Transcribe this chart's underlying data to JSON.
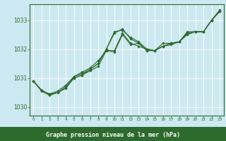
{
  "bg_color": "#cce8f0",
  "plot_bg_color": "#cce8f0",
  "bottom_bar_color": "#2d6a2d",
  "grid_color": "#ffffff",
  "line_color": "#2d6a2d",
  "marker_color": "#2d6a2d",
  "xlabel": "Graphe pression niveau de la mer (hPa)",
  "xlabel_color": "#ffffff",
  "tick_color": "#2d6a2d",
  "xlim": [
    -0.5,
    23.5
  ],
  "ylim": [
    1029.7,
    1033.55
  ],
  "yticks": [
    1030,
    1031,
    1032,
    1033
  ],
  "xticks": [
    0,
    1,
    2,
    3,
    4,
    5,
    6,
    7,
    8,
    9,
    10,
    11,
    12,
    13,
    14,
    15,
    16,
    17,
    18,
    19,
    20,
    21,
    22,
    23
  ],
  "series": [
    [
      1030.9,
      1030.58,
      1030.43,
      1030.5,
      1030.65,
      1031.0,
      1031.1,
      1031.25,
      1031.4,
      1031.95,
      1031.9,
      1032.5,
      1032.15,
      1032.2,
      1031.95,
      1031.95,
      1032.2,
      1032.2,
      1032.25,
      1032.6,
      1032.6,
      1032.6,
      1033.0,
      1033.3
    ],
    [
      1030.9,
      1030.58,
      1030.43,
      1030.5,
      1030.65,
      1031.0,
      1031.1,
      1031.3,
      1031.5,
      1032.0,
      1032.6,
      1032.65,
      1032.4,
      1032.25,
      1032.0,
      1031.95,
      1032.1,
      1032.15,
      1032.25,
      1032.5,
      1032.6,
      1032.6,
      1033.0,
      1033.3
    ],
    [
      1030.9,
      1030.55,
      1030.4,
      1030.5,
      1030.7,
      1031.05,
      1031.15,
      1031.3,
      1031.5,
      1032.0,
      1032.55,
      1032.7,
      1032.35,
      1032.2,
      1031.95,
      1031.95,
      1032.1,
      1032.2,
      1032.25,
      1032.55,
      1032.6,
      1032.6,
      1033.0,
      1033.3
    ],
    [
      1030.9,
      1030.55,
      1030.45,
      1030.55,
      1030.75,
      1031.05,
      1031.2,
      1031.35,
      1031.6,
      1031.95,
      1031.95,
      1032.55,
      1032.2,
      1032.1,
      1032.0,
      1031.95,
      1032.1,
      1032.2,
      1032.25,
      1032.55,
      1032.6,
      1032.6,
      1033.0,
      1033.35
    ]
  ]
}
